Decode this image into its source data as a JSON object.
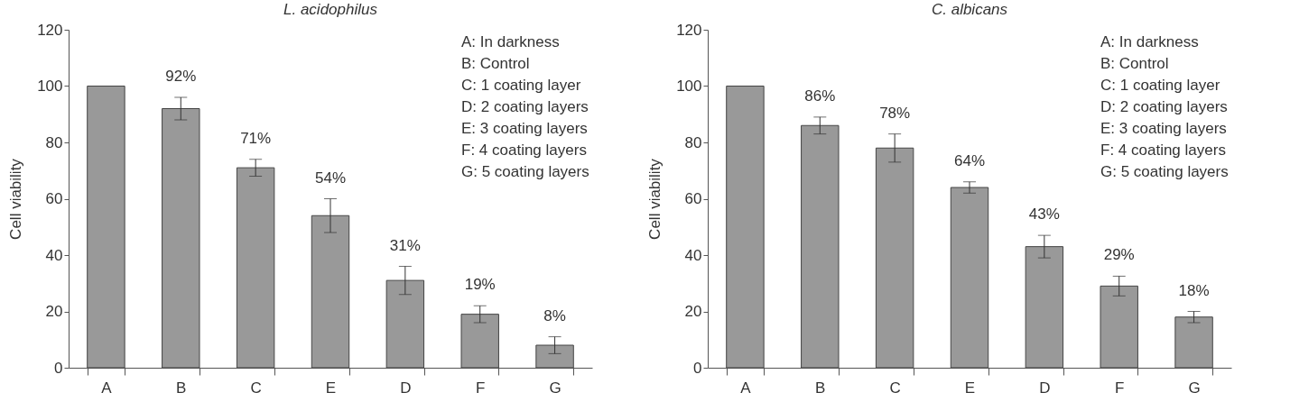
{
  "chart_data": [
    {
      "type": "bar",
      "title": "L. acidophilus",
      "ylabel": "Cell viability",
      "categories": [
        "A",
        "B",
        "C",
        "E",
        "D",
        "F",
        "G"
      ],
      "values": [
        100,
        92,
        71,
        54,
        31,
        19,
        8
      ],
      "errors": [
        null,
        4,
        3,
        6,
        5,
        3,
        3
      ],
      "value_labels": [
        null,
        "92%",
        "71%",
        "54%",
        "31%",
        "19%",
        "8%"
      ],
      "color": "#999999",
      "ylim": [
        0,
        120
      ],
      "yticks": [
        0,
        20,
        40,
        60,
        80,
        100,
        120
      ],
      "grid": false,
      "annotations": [
        "A: In darkness",
        "B: Control",
        "C: 1 coating layer",
        "D: 2 coating layers",
        "E: 3 coating layers",
        "F: 4 coating layers",
        "G: 5 coating layers"
      ]
    },
    {
      "type": "bar",
      "title": "C. albicans",
      "ylabel": "Cell viability",
      "categories": [
        "A",
        "B",
        "C",
        "E",
        "D",
        "F",
        "G"
      ],
      "values": [
        100,
        86,
        78,
        64,
        43,
        29,
        18
      ],
      "errors": [
        null,
        3,
        5,
        2,
        4,
        3.5,
        2
      ],
      "value_labels": [
        null,
        "86%",
        "78%",
        "64%",
        "43%",
        "29%",
        "18%"
      ],
      "color": "#999999",
      "ylim": [
        0,
        120
      ],
      "yticks": [
        0,
        20,
        40,
        60,
        80,
        100,
        120
      ],
      "grid": false,
      "annotations": [
        "A: In darkness",
        "B: Control",
        "C: 1 coating layer",
        "D: 2 coating layers",
        "E: 3 coating layers",
        "F: 4 coating layers",
        "G: 5 coating layers"
      ]
    }
  ]
}
